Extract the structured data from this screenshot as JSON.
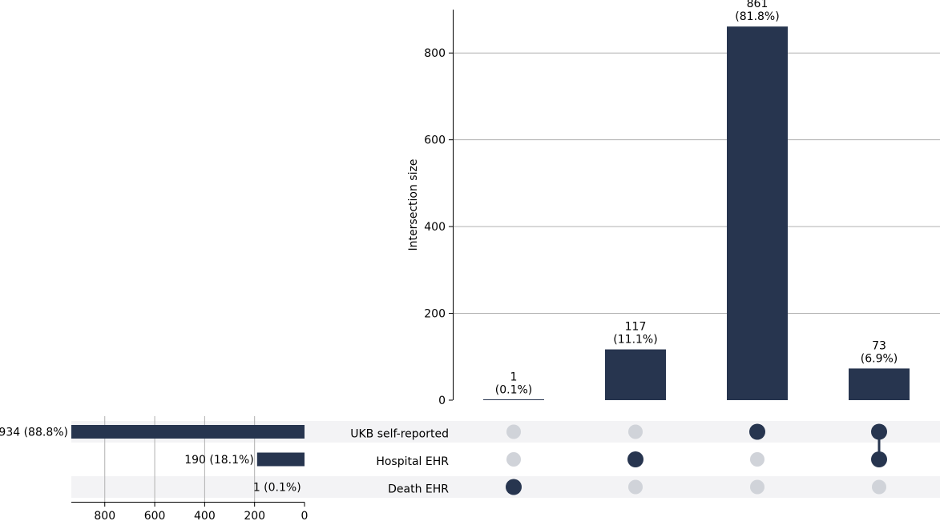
{
  "chart_data": {
    "type": "upset",
    "bar_color": "#27354f",
    "inactive_dot_color": "#d0d3d9",
    "stripe_color": "#f3f3f5",
    "grid_color": "#b0b0b0",
    "intersection_plot": {
      "ylabel": "Intersection size",
      "ylim": [
        0,
        900
      ],
      "yticks": [
        0,
        200,
        400,
        600,
        800
      ],
      "grid": true
    },
    "intersections": [
      {
        "sets": [
          "Death EHR"
        ],
        "value": 1,
        "label_count": "1",
        "label_pct": "(0.1%)"
      },
      {
        "sets": [
          "Hospital EHR"
        ],
        "value": 117,
        "label_count": "117",
        "label_pct": "(11.1%)"
      },
      {
        "sets": [
          "UKB self-reported"
        ],
        "value": 861,
        "label_count": "861",
        "label_pct": "(81.8%)"
      },
      {
        "sets": [
          "UKB self-reported",
          "Hospital EHR"
        ],
        "value": 73,
        "label_count": "73",
        "label_pct": "(6.9%)"
      }
    ],
    "sets": [
      {
        "name": "UKB self-reported",
        "size": 934,
        "label": "934 (88.8%)"
      },
      {
        "name": "Hospital EHR",
        "size": 190,
        "label": "190 (18.1%)"
      },
      {
        "name": "Death EHR",
        "size": 1,
        "label": "1 (0.1%)"
      }
    ],
    "set_size_plot": {
      "xticks": [
        800,
        600,
        400,
        200,
        0
      ],
      "xlim": [
        0,
        934
      ],
      "grid": true
    }
  }
}
